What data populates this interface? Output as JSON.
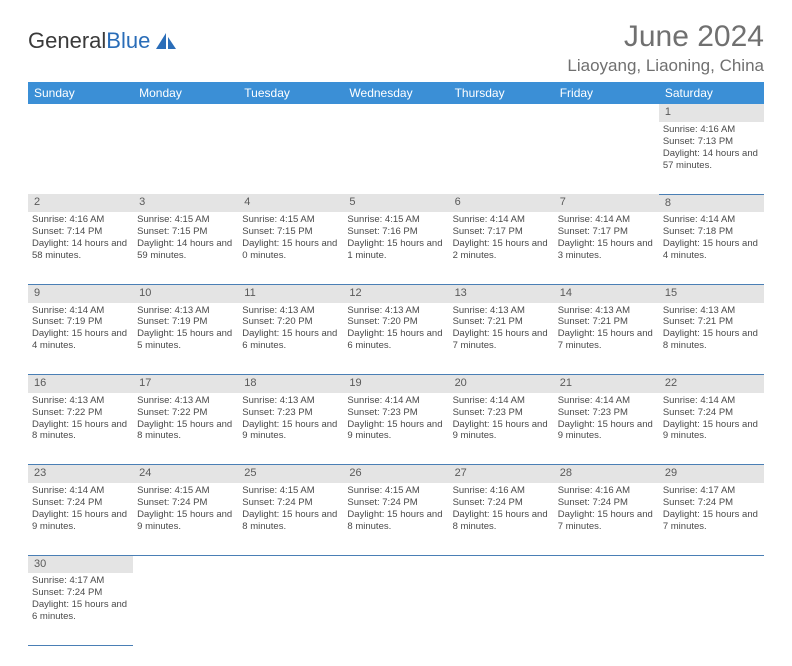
{
  "logo": {
    "part1": "General",
    "part2": "Blue"
  },
  "title": "June 2024",
  "location": "Liaoyang, Liaoning, China",
  "colors": {
    "header_bg": "#3b8fd6",
    "header_text": "#ffffff",
    "daynum_bg": "#e4e4e4",
    "row_divider": "#4a7fb5",
    "title_color": "#707070",
    "logo_gray": "#3a3a3a",
    "logo_blue": "#2a6db8"
  },
  "day_headers": [
    "Sunday",
    "Monday",
    "Tuesday",
    "Wednesday",
    "Thursday",
    "Friday",
    "Saturday"
  ],
  "weeks": [
    {
      "nums": [
        "",
        "",
        "",
        "",
        "",
        "",
        "1"
      ],
      "cells": [
        null,
        null,
        null,
        null,
        null,
        null,
        {
          "sunrise": "Sunrise: 4:16 AM",
          "sunset": "Sunset: 7:13 PM",
          "daylight": "Daylight: 14 hours and 57 minutes."
        }
      ]
    },
    {
      "nums": [
        "2",
        "3",
        "4",
        "5",
        "6",
        "7",
        "8"
      ],
      "cells": [
        {
          "sunrise": "Sunrise: 4:16 AM",
          "sunset": "Sunset: 7:14 PM",
          "daylight": "Daylight: 14 hours and 58 minutes."
        },
        {
          "sunrise": "Sunrise: 4:15 AM",
          "sunset": "Sunset: 7:15 PM",
          "daylight": "Daylight: 14 hours and 59 minutes."
        },
        {
          "sunrise": "Sunrise: 4:15 AM",
          "sunset": "Sunset: 7:15 PM",
          "daylight": "Daylight: 15 hours and 0 minutes."
        },
        {
          "sunrise": "Sunrise: 4:15 AM",
          "sunset": "Sunset: 7:16 PM",
          "daylight": "Daylight: 15 hours and 1 minute."
        },
        {
          "sunrise": "Sunrise: 4:14 AM",
          "sunset": "Sunset: 7:17 PM",
          "daylight": "Daylight: 15 hours and 2 minutes."
        },
        {
          "sunrise": "Sunrise: 4:14 AM",
          "sunset": "Sunset: 7:17 PM",
          "daylight": "Daylight: 15 hours and 3 minutes."
        },
        {
          "sunrise": "Sunrise: 4:14 AM",
          "sunset": "Sunset: 7:18 PM",
          "daylight": "Daylight: 15 hours and 4 minutes."
        }
      ]
    },
    {
      "nums": [
        "9",
        "10",
        "11",
        "12",
        "13",
        "14",
        "15"
      ],
      "cells": [
        {
          "sunrise": "Sunrise: 4:14 AM",
          "sunset": "Sunset: 7:19 PM",
          "daylight": "Daylight: 15 hours and 4 minutes."
        },
        {
          "sunrise": "Sunrise: 4:13 AM",
          "sunset": "Sunset: 7:19 PM",
          "daylight": "Daylight: 15 hours and 5 minutes."
        },
        {
          "sunrise": "Sunrise: 4:13 AM",
          "sunset": "Sunset: 7:20 PM",
          "daylight": "Daylight: 15 hours and 6 minutes."
        },
        {
          "sunrise": "Sunrise: 4:13 AM",
          "sunset": "Sunset: 7:20 PM",
          "daylight": "Daylight: 15 hours and 6 minutes."
        },
        {
          "sunrise": "Sunrise: 4:13 AM",
          "sunset": "Sunset: 7:21 PM",
          "daylight": "Daylight: 15 hours and 7 minutes."
        },
        {
          "sunrise": "Sunrise: 4:13 AM",
          "sunset": "Sunset: 7:21 PM",
          "daylight": "Daylight: 15 hours and 7 minutes."
        },
        {
          "sunrise": "Sunrise: 4:13 AM",
          "sunset": "Sunset: 7:21 PM",
          "daylight": "Daylight: 15 hours and 8 minutes."
        }
      ]
    },
    {
      "nums": [
        "16",
        "17",
        "18",
        "19",
        "20",
        "21",
        "22"
      ],
      "cells": [
        {
          "sunrise": "Sunrise: 4:13 AM",
          "sunset": "Sunset: 7:22 PM",
          "daylight": "Daylight: 15 hours and 8 minutes."
        },
        {
          "sunrise": "Sunrise: 4:13 AM",
          "sunset": "Sunset: 7:22 PM",
          "daylight": "Daylight: 15 hours and 8 minutes."
        },
        {
          "sunrise": "Sunrise: 4:13 AM",
          "sunset": "Sunset: 7:23 PM",
          "daylight": "Daylight: 15 hours and 9 minutes."
        },
        {
          "sunrise": "Sunrise: 4:14 AM",
          "sunset": "Sunset: 7:23 PM",
          "daylight": "Daylight: 15 hours and 9 minutes."
        },
        {
          "sunrise": "Sunrise: 4:14 AM",
          "sunset": "Sunset: 7:23 PM",
          "daylight": "Daylight: 15 hours and 9 minutes."
        },
        {
          "sunrise": "Sunrise: 4:14 AM",
          "sunset": "Sunset: 7:23 PM",
          "daylight": "Daylight: 15 hours and 9 minutes."
        },
        {
          "sunrise": "Sunrise: 4:14 AM",
          "sunset": "Sunset: 7:24 PM",
          "daylight": "Daylight: 15 hours and 9 minutes."
        }
      ]
    },
    {
      "nums": [
        "23",
        "24",
        "25",
        "26",
        "27",
        "28",
        "29"
      ],
      "cells": [
        {
          "sunrise": "Sunrise: 4:14 AM",
          "sunset": "Sunset: 7:24 PM",
          "daylight": "Daylight: 15 hours and 9 minutes."
        },
        {
          "sunrise": "Sunrise: 4:15 AM",
          "sunset": "Sunset: 7:24 PM",
          "daylight": "Daylight: 15 hours and 9 minutes."
        },
        {
          "sunrise": "Sunrise: 4:15 AM",
          "sunset": "Sunset: 7:24 PM",
          "daylight": "Daylight: 15 hours and 8 minutes."
        },
        {
          "sunrise": "Sunrise: 4:15 AM",
          "sunset": "Sunset: 7:24 PM",
          "daylight": "Daylight: 15 hours and 8 minutes."
        },
        {
          "sunrise": "Sunrise: 4:16 AM",
          "sunset": "Sunset: 7:24 PM",
          "daylight": "Daylight: 15 hours and 8 minutes."
        },
        {
          "sunrise": "Sunrise: 4:16 AM",
          "sunset": "Sunset: 7:24 PM",
          "daylight": "Daylight: 15 hours and 7 minutes."
        },
        {
          "sunrise": "Sunrise: 4:17 AM",
          "sunset": "Sunset: 7:24 PM",
          "daylight": "Daylight: 15 hours and 7 minutes."
        }
      ]
    },
    {
      "nums": [
        "30",
        "",
        "",
        "",
        "",
        "",
        ""
      ],
      "cells": [
        {
          "sunrise": "Sunrise: 4:17 AM",
          "sunset": "Sunset: 7:24 PM",
          "daylight": "Daylight: 15 hours and 6 minutes."
        },
        null,
        null,
        null,
        null,
        null,
        null
      ]
    }
  ]
}
